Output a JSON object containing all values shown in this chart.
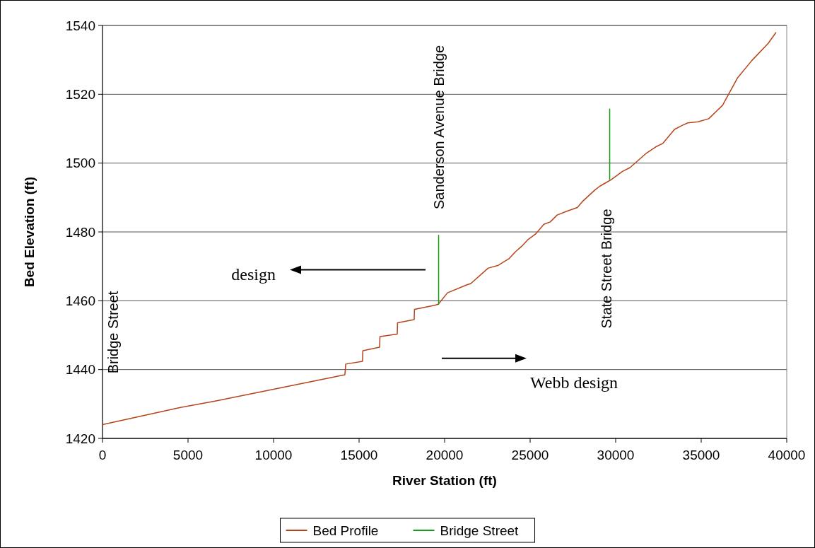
{
  "chart_data": {
    "type": "line",
    "xlabel": "River Station (ft)",
    "ylabel": "Bed Elevation (ft)",
    "xlim": [
      0,
      40000
    ],
    "xticks": [
      0,
      5000,
      10000,
      15000,
      20000,
      25000,
      30000,
      35000,
      40000
    ],
    "ylim": [
      1420,
      1540
    ],
    "yticks": [
      1420,
      1440,
      1460,
      1480,
      1500,
      1520,
      1540
    ],
    "grid": "y",
    "legend": "bottom",
    "marker": "none",
    "line_style": "solid",
    "series": [
      {
        "name": "Bed Profile",
        "color": "#b5441a",
        "x": [
          0,
          4460,
          6530,
          10410,
          14170,
          14220,
          15200,
          15220,
          16200,
          16220,
          17230,
          17250,
          18220,
          18240,
          19420,
          19630,
          20170,
          21280,
          21530,
          22550,
          23140,
          23760,
          24130,
          24500,
          24860,
          25320,
          25800,
          26170,
          26580,
          27140,
          27760,
          28050,
          28790,
          29080,
          29740,
          30400,
          30840,
          31800,
          32340,
          32750,
          33440,
          33860,
          34220,
          34810,
          35440,
          36250,
          37130,
          37960,
          38920,
          39360
        ],
        "values": [
          1424,
          1428.9,
          1430.8,
          1434.7,
          1438.5,
          1441.6,
          1442.4,
          1445.5,
          1446.5,
          1449.6,
          1450.3,
          1453.6,
          1454.5,
          1457.5,
          1458.7,
          1459,
          1462.3,
          1464.6,
          1465,
          1469.5,
          1470.3,
          1472.2,
          1474.2,
          1475.8,
          1477.7,
          1479.4,
          1482.2,
          1482.9,
          1484.9,
          1486,
          1487.1,
          1488.8,
          1492.2,
          1493.3,
          1495.2,
          1497.6,
          1498.7,
          1502.9,
          1504.7,
          1505.7,
          1509.8,
          1510.9,
          1511.7,
          1512,
          1512.9,
          1516.8,
          1524.8,
          1529.8,
          1534.8,
          1537.9
        ]
      },
      {
        "name": "Bridge Street",
        "color": "#1a9a1a",
        "x": [
          19650,
          19650,
          19660,
          29650,
          29650
        ],
        "values": [
          1459,
          1479,
          null,
          1495.2,
          1515.7
        ]
      }
    ],
    "annotations": [
      "Bridge Street",
      "Sanderson Avenue Bridge",
      "State Street Bridge",
      "design",
      "Webb design"
    ]
  }
}
